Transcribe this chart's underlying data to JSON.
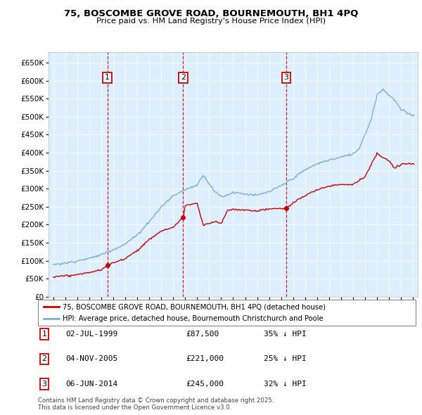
{
  "title1": "75, BOSCOMBE GROVE ROAD, BOURNEMOUTH, BH1 4PQ",
  "title2": "Price paid vs. HM Land Registry's House Price Index (HPI)",
  "legend_line1": "75, BOSCOMBE GROVE ROAD, BOURNEMOUTH, BH1 4PQ (detached house)",
  "legend_line2": "HPI: Average price, detached house, Bournemouth Christchurch and Poole",
  "footnote1": "Contains HM Land Registry data © Crown copyright and database right 2025.",
  "footnote2": "This data is licensed under the Open Government Licence v3.0.",
  "sale_color": "#cc0000",
  "hpi_color": "#7aafd4",
  "background_color": "#ddeeff",
  "purchases": [
    {
      "num": 1,
      "date": "02-JUL-1999",
      "price": 87500,
      "hpi_diff": "35% ↓ HPI",
      "year": 1999.5
    },
    {
      "num": 2,
      "date": "04-NOV-2005",
      "price": 221000,
      "hpi_diff": "25% ↓ HPI",
      "year": 2005.83
    },
    {
      "num": 3,
      "date": "06-JUN-2014",
      "price": 245000,
      "hpi_diff": "32% ↓ HPI",
      "year": 2014.43
    }
  ],
  "ylim": [
    0,
    680000
  ],
  "xlim_start": 1994.6,
  "xlim_end": 2025.4
}
